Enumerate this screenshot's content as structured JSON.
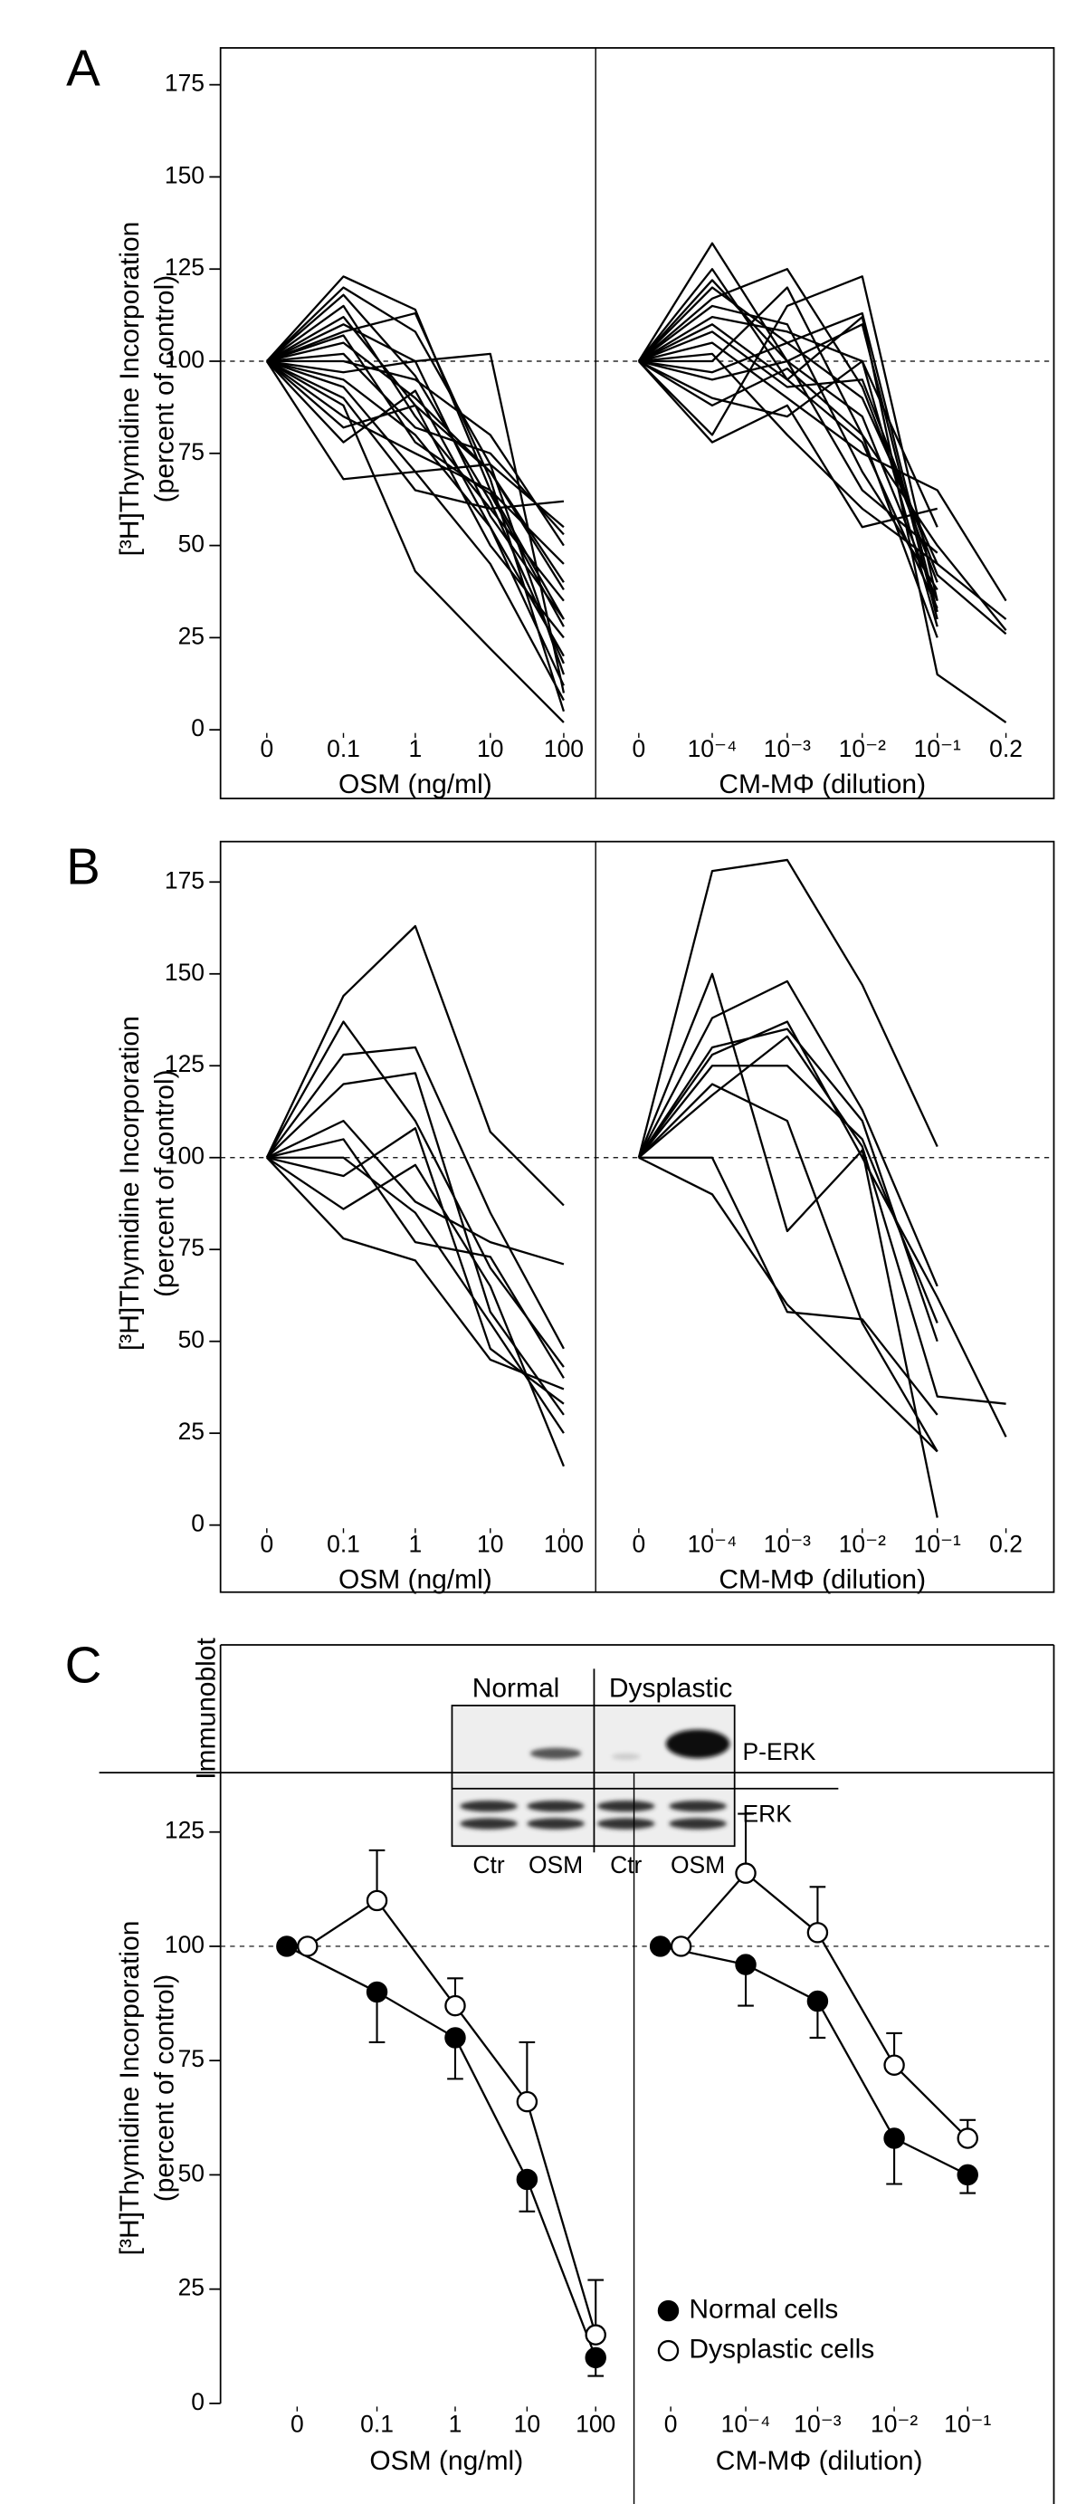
{
  "chart_data": [
    {
      "type": "line",
      "panel": "A",
      "ylabel": "[³H]Thymidine Incorporation",
      "ylabel_sub": "(percent of control)",
      "ylim": [
        0,
        185
      ],
      "yticks": [
        0,
        25,
        50,
        75,
        100,
        125,
        150,
        175
      ],
      "reference_line": 100,
      "color": "#000000",
      "left": {
        "xlabel": "OSM (ng/ml)",
        "categories": [
          "0",
          "0.1",
          "1",
          "10",
          "100"
        ],
        "series": [
          {
            "values": [
              100,
              123,
              114,
              65,
              30
            ]
          },
          {
            "values": [
              100,
              120,
              108,
              72,
              55
            ]
          },
          {
            "values": [
              100,
              68,
              70,
              72,
              15
            ]
          },
          {
            "values": [
              100,
              88,
              43,
              22,
              2
            ]
          },
          {
            "values": [
              100,
              110,
              100,
              102,
              10
            ]
          },
          {
            "values": [
              100,
              115,
              85,
              60,
              35
            ]
          },
          {
            "values": [
              100,
              105,
              90,
              70,
              40
            ]
          },
          {
            "values": [
              100,
              95,
              80,
              55,
              20
            ]
          },
          {
            "values": [
              100,
              85,
              75,
              65,
              45
            ]
          },
          {
            "values": [
              100,
              100,
              95,
              80,
              50
            ]
          },
          {
            "values": [
              100,
              112,
              88,
              50,
              25
            ]
          },
          {
            "values": [
              100,
              90,
              65,
              60,
              62
            ]
          },
          {
            "values": [
              100,
              108,
              113,
              68,
              5
            ]
          },
          {
            "values": [
              100,
              78,
              92,
              55,
              12
            ]
          },
          {
            "values": [
              100,
              102,
              82,
              75,
              53
            ]
          },
          {
            "values": [
              100,
              118,
              96,
              62,
              18
            ]
          },
          {
            "values": [
              100,
              93,
              70,
              45,
              8
            ]
          },
          {
            "values": [
              100,
              97,
              100,
              58,
              30
            ]
          },
          {
            "values": [
              100,
              82,
              88,
              70,
              38
            ]
          },
          {
            "values": [
              100,
              107,
              78,
              64,
              28
            ]
          }
        ]
      },
      "right": {
        "xlabel": "CM-MΦ (dilution)",
        "categories": [
          "0",
          "10⁻⁴",
          "10⁻³",
          "10⁻²",
          "10⁻¹",
          "0.2"
        ],
        "series": [
          {
            "values": [
              100,
              132,
              100,
              110,
              30,
              null
            ]
          },
          {
            "values": [
              100,
              117,
              125,
              93,
              40,
              null
            ]
          },
          {
            "values": [
              100,
              80,
              115,
              123,
              35,
              null
            ]
          },
          {
            "values": [
              100,
              110,
              95,
              112,
              15,
              2
            ]
          },
          {
            "values": [
              100,
              120,
              105,
              90,
              45,
              null
            ]
          },
          {
            "values": [
              100,
              105,
              90,
              75,
              65,
              35
            ]
          },
          {
            "values": [
              100,
              95,
              100,
              85,
              35,
              null
            ]
          },
          {
            "values": [
              100,
              88,
              98,
              80,
              50,
              27
            ]
          },
          {
            "values": [
              100,
              112,
              108,
              100,
              28,
              null
            ]
          },
          {
            "values": [
              100,
              102,
              80,
              60,
              45,
              30
            ]
          },
          {
            "values": [
              100,
              125,
              95,
              78,
              33,
              null
            ]
          },
          {
            "values": [
              100,
              90,
              85,
              100,
              55,
              null
            ]
          },
          {
            "values": [
              100,
              115,
              110,
              70,
              38,
              null
            ]
          },
          {
            "values": [
              100,
              100,
              120,
              80,
              25,
              null
            ]
          },
          {
            "values": [
              100,
              108,
              93,
              95,
              42,
              26
            ]
          },
          {
            "values": [
              100,
              78,
              88,
              55,
              60,
              null
            ]
          },
          {
            "values": [
              100,
              97,
              105,
              113,
              32,
              null
            ]
          },
          {
            "values": [
              100,
              122,
              100,
              65,
              48,
              null
            ]
          }
        ]
      }
    },
    {
      "type": "line",
      "panel": "B",
      "ylabel": "[³H]Thymidine Incorporation",
      "ylabel_sub": "(percent of control)",
      "ylim": [
        0,
        186
      ],
      "yticks": [
        0,
        25,
        50,
        75,
        100,
        125,
        150,
        175
      ],
      "reference_line": 100,
      "color": "#000000",
      "left": {
        "xlabel": "OSM (ng/ml)",
        "categories": [
          "0",
          "0.1",
          "1",
          "10",
          "100"
        ],
        "series": [
          {
            "values": [
              100,
              144,
              163,
              107,
              87
            ]
          },
          {
            "values": [
              100,
              137,
              110,
              70,
              43
            ]
          },
          {
            "values": [
              100,
              128,
              130,
              85,
              48
            ]
          },
          {
            "values": [
              100,
              120,
              123,
              58,
              30
            ]
          },
          {
            "values": [
              100,
              110,
              88,
              77,
              71
            ]
          },
          {
            "values": [
              100,
              95,
              108,
              48,
              33
            ]
          },
          {
            "values": [
              100,
              86,
              98,
              65,
              16
            ]
          },
          {
            "values": [
              100,
              78,
              72,
              45,
              37
            ]
          },
          {
            "values": [
              100,
              105,
              77,
              73,
              40
            ]
          },
          {
            "values": [
              100,
              100,
              85,
              55,
              25
            ]
          }
        ]
      },
      "right": {
        "xlabel": "CM-MΦ (dilution)",
        "categories": [
          "0",
          "10⁻⁴",
          "10⁻³",
          "10⁻²",
          "10⁻¹",
          "0.2"
        ],
        "series": [
          {
            "values": [
              100,
              178,
              181,
              147,
              103,
              null
            ]
          },
          {
            "values": [
              100,
              150,
              80,
              102,
              2,
              null
            ]
          },
          {
            "values": [
              100,
              138,
              148,
              113,
              65,
              null
            ]
          },
          {
            "values": [
              100,
              130,
              135,
              110,
              50,
              null
            ]
          },
          {
            "values": [
              100,
              128,
              137,
              100,
              62,
              24
            ]
          },
          {
            "values": [
              100,
              120,
              110,
              55,
              20,
              null
            ]
          },
          {
            "values": [
              100,
              100,
              58,
              56,
              30,
              null
            ]
          },
          {
            "values": [
              100,
              117,
              133,
              103,
              35,
              33
            ]
          },
          {
            "values": [
              100,
              90,
              60,
              40,
              20,
              null
            ]
          },
          {
            "values": [
              100,
              125,
              125,
              105,
              55,
              null
            ]
          }
        ]
      }
    },
    {
      "type": "line",
      "panel": "C",
      "ylabel": "[³H]Thymidine Incorporation",
      "ylabel_sub": "(percent of control)",
      "ylim": [
        0,
        138
      ],
      "yticks": [
        0,
        25,
        50,
        75,
        100,
        125
      ],
      "reference_line": 100,
      "color": "#000000",
      "legend_position": "lower right",
      "legend": [
        {
          "name": "Normal cells",
          "fill": "#000000",
          "error_side": "down"
        },
        {
          "name": "Dysplastic cells",
          "fill": "#ffffff",
          "error_side": "up"
        }
      ],
      "left": {
        "xlabel": "OSM (ng/ml)",
        "categories": [
          "0",
          "0.1",
          "1",
          "10",
          "100"
        ],
        "series": [
          {
            "values": [
              100,
              90,
              80,
              49,
              10
            ],
            "errors": [
              0,
              11,
              9,
              7,
              4
            ]
          },
          {
            "values": [
              100,
              110,
              87,
              66,
              15
            ],
            "errors": [
              0,
              11,
              6,
              13,
              12
            ]
          }
        ]
      },
      "right": {
        "xlabel": "CM-MΦ (dilution)",
        "categories": [
          "0",
          "10⁻⁴",
          "10⁻³",
          "10⁻²",
          "10⁻¹"
        ],
        "series": [
          {
            "values": [
              100,
              96,
              88,
              58,
              50
            ],
            "errors": [
              0,
              9,
              8,
              10,
              4
            ]
          },
          {
            "values": [
              100,
              116,
              103,
              74,
              58
            ],
            "errors": [
              0,
              13,
              10,
              7,
              4
            ]
          }
        ]
      }
    }
  ],
  "immunoblot": {
    "title": "Immunoblot",
    "groups": [
      "Normal",
      "Dysplastic"
    ],
    "rows": [
      "P-ERK",
      "ERK"
    ],
    "lanes": [
      "Ctr",
      "OSM",
      "Ctr",
      "OSM"
    ]
  }
}
